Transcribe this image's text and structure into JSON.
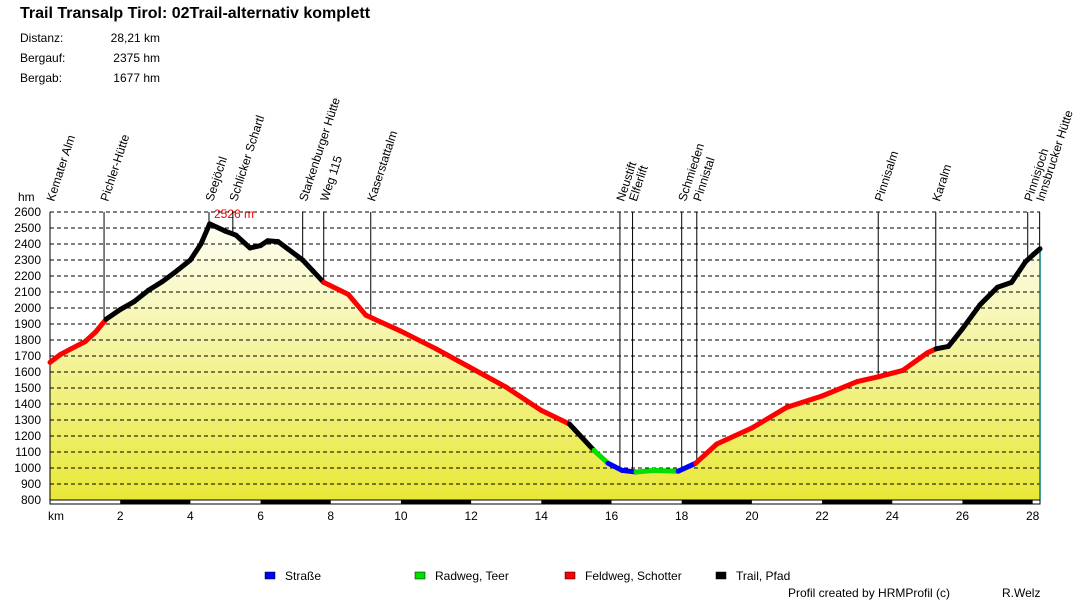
{
  "chart_data": {
    "type": "area",
    "title": "Trail Transalp Tirol: 02Trail-alternativ komplett",
    "stats": [
      {
        "label": "Distanz:",
        "value": "28,21 km"
      },
      {
        "label": "Bergauf:",
        "value": "2375 hm"
      },
      {
        "label": "Bergab:",
        "value": "1677 hm"
      }
    ],
    "ylabel": "hm",
    "xlabel": "km",
    "ylim": [
      800,
      2600
    ],
    "yticks": [
      2600,
      2500,
      2400,
      2300,
      2200,
      2100,
      2000,
      1900,
      1800,
      1700,
      1600,
      1500,
      1400,
      1300,
      1200,
      1100,
      1000,
      900,
      800
    ],
    "xlim": [
      0,
      28.21
    ],
    "xticks": [
      2,
      4,
      6,
      8,
      10,
      12,
      14,
      16,
      18,
      20,
      22,
      24,
      26,
      28
    ],
    "grid": true,
    "max_label": "2526 m",
    "max_point": [
      4.55,
      2526
    ],
    "surface_colors": {
      "strasse": "#0000ff",
      "radweg": "#00e000",
      "feldweg": "#ff0000",
      "trail": "#000000"
    },
    "profile": [
      [
        0,
        1660,
        "feldweg"
      ],
      [
        0.3,
        1710,
        "feldweg"
      ],
      [
        0.6,
        1745,
        "feldweg"
      ],
      [
        1.0,
        1790,
        "feldweg"
      ],
      [
        1.3,
        1850,
        "feldweg"
      ],
      [
        1.6,
        1930,
        "trail"
      ],
      [
        2.0,
        1990,
        "trail"
      ],
      [
        2.4,
        2040,
        "trail"
      ],
      [
        2.8,
        2110,
        "trail"
      ],
      [
        3.2,
        2165,
        "trail"
      ],
      [
        3.6,
        2230,
        "trail"
      ],
      [
        4.0,
        2300,
        "trail"
      ],
      [
        4.3,
        2400,
        "trail"
      ],
      [
        4.55,
        2526,
        "trail"
      ],
      [
        5.0,
        2480,
        "trail"
      ],
      [
        5.3,
        2455,
        "trail"
      ],
      [
        5.7,
        2375,
        "trail"
      ],
      [
        6.0,
        2390,
        "trail"
      ],
      [
        6.2,
        2420,
        "trail"
      ],
      [
        6.5,
        2415,
        "trail"
      ],
      [
        7.2,
        2300,
        "trail"
      ],
      [
        7.5,
        2230,
        "trail"
      ],
      [
        7.8,
        2160,
        "feldweg"
      ],
      [
        8.5,
        2085,
        "feldweg"
      ],
      [
        9.0,
        1955,
        "feldweg"
      ],
      [
        9.2,
        1935,
        "feldweg"
      ],
      [
        10.0,
        1855,
        "feldweg"
      ],
      [
        11.0,
        1745,
        "feldweg"
      ],
      [
        12.0,
        1625,
        "feldweg"
      ],
      [
        13.0,
        1505,
        "feldweg"
      ],
      [
        14.0,
        1360,
        "feldweg"
      ],
      [
        14.8,
        1275,
        "trail"
      ],
      [
        15.5,
        1110,
        "radweg"
      ],
      [
        15.9,
        1030,
        "strasse"
      ],
      [
        16.3,
        985,
        "strasse"
      ],
      [
        16.7,
        975,
        "radweg"
      ],
      [
        17.2,
        985,
        "radweg"
      ],
      [
        17.9,
        980,
        "strasse"
      ],
      [
        18.4,
        1030,
        "feldweg"
      ],
      [
        19.0,
        1150,
        "feldweg"
      ],
      [
        20.0,
        1250,
        "feldweg"
      ],
      [
        21.0,
        1380,
        "feldweg"
      ],
      [
        22.0,
        1450,
        "feldweg"
      ],
      [
        23.0,
        1540,
        "feldweg"
      ],
      [
        23.6,
        1570,
        "feldweg"
      ],
      [
        24.3,
        1610,
        "feldweg"
      ],
      [
        25.0,
        1720,
        "feldweg"
      ],
      [
        25.25,
        1745,
        "trail"
      ],
      [
        25.6,
        1760,
        "trail"
      ],
      [
        26.0,
        1870,
        "trail"
      ],
      [
        26.5,
        2020,
        "trail"
      ],
      [
        27.0,
        2130,
        "trail"
      ],
      [
        27.4,
        2160,
        "trail"
      ],
      [
        27.8,
        2290,
        "trail"
      ],
      [
        28.0,
        2330,
        "trail"
      ],
      [
        28.21,
        2370,
        "trail"
      ]
    ],
    "waypoints": [
      {
        "km": 0.0,
        "label": "Kemater Alm"
      },
      {
        "km": 1.54,
        "label": "Pichler-Hütte"
      },
      {
        "km": 4.53,
        "label": "Seejöchl"
      },
      {
        "km": 5.21,
        "label": "Schlicker Schartl"
      },
      {
        "km": 7.2,
        "label": "Starkenburger Hütte"
      },
      {
        "km": 7.8,
        "label": "Weg 115"
      },
      {
        "km": 9.14,
        "label": "Kaserstattalm"
      },
      {
        "km": 16.24,
        "label": "Neustift"
      },
      {
        "km": 16.6,
        "label": "Elferlift"
      },
      {
        "km": 18.0,
        "label": "Schmieden"
      },
      {
        "km": 18.43,
        "label": "Pinnistal"
      },
      {
        "km": 23.6,
        "label": "Pinnisalm"
      },
      {
        "km": 25.24,
        "label": "Karalm"
      },
      {
        "km": 27.86,
        "label": "Pinnisjoch"
      },
      {
        "km": 28.2,
        "label": "Innsbrucker Hütte"
      }
    ],
    "legend": [
      {
        "key": "strasse",
        "label": "Straße"
      },
      {
        "key": "radweg",
        "label": "Radweg, Teer"
      },
      {
        "key": "feldweg",
        "label": "Feldweg, Schotter"
      },
      {
        "key": "trail",
        "label": "Trail, Pfad"
      }
    ],
    "legend_position": "bottom",
    "credit": "Profil created by HRMProfil (c)",
    "author": "R.Welz"
  }
}
